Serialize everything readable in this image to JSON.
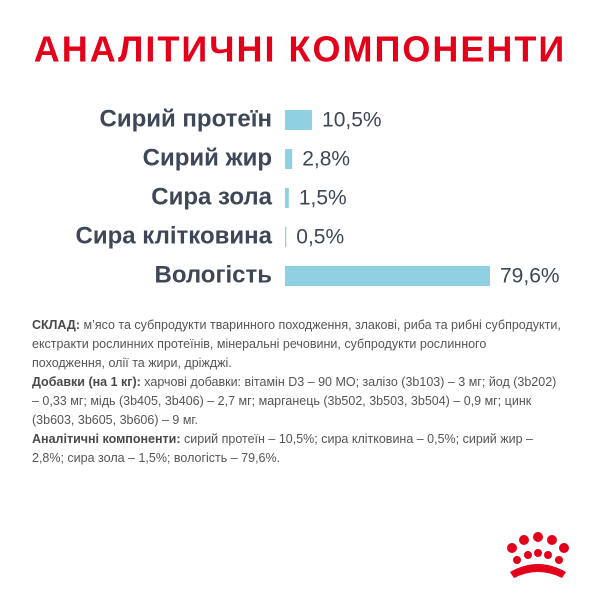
{
  "chart_data": {
    "type": "bar",
    "orientation": "horizontal",
    "title": "АНАЛІТИЧНІ КОМПОНЕНТИ",
    "categories": [
      "Сирий протеїн",
      "Сирий жир",
      "Сира зола",
      "Сира клітковина",
      "Вологість"
    ],
    "values": [
      10.5,
      2.8,
      1.5,
      0.5,
      79.6
    ],
    "value_labels": [
      "10,5%",
      "2,8%",
      "1,5%",
      "0,5%",
      "79,6%"
    ],
    "color": "#8fd0e2"
  },
  "composition": [
    {
      "label": "СКЛАД:",
      "text": " м’ясо та субпродукти тваринного походження, злакові, риба та рибні субпродукти, екстракти рослинних протеїнів, мінеральні речовини, субпродукти рослинного походження, олії та жири, дріжджі."
    },
    {
      "label": "Добавки (на 1 кг):",
      "text": " харчові добавки: вітамін D3 – 90 МО; залізо (3b103) – 3 мг; йод (3b202) – 0,33 мг; мідь (3b405, 3b406) – 2,7 мг; марганець (3b502, 3b503, 3b504) – 0,9 мг; цинк (3b603, 3b605, 3b606) – 9 мг."
    },
    {
      "label": "Аналітичні компоненти:",
      "text": " сирий протеїн – 10,5%; сира клітковина – 0,5%; сирий жир – 2,8%; сира зола – 1,5%; вологість – 79,6%."
    }
  ]
}
